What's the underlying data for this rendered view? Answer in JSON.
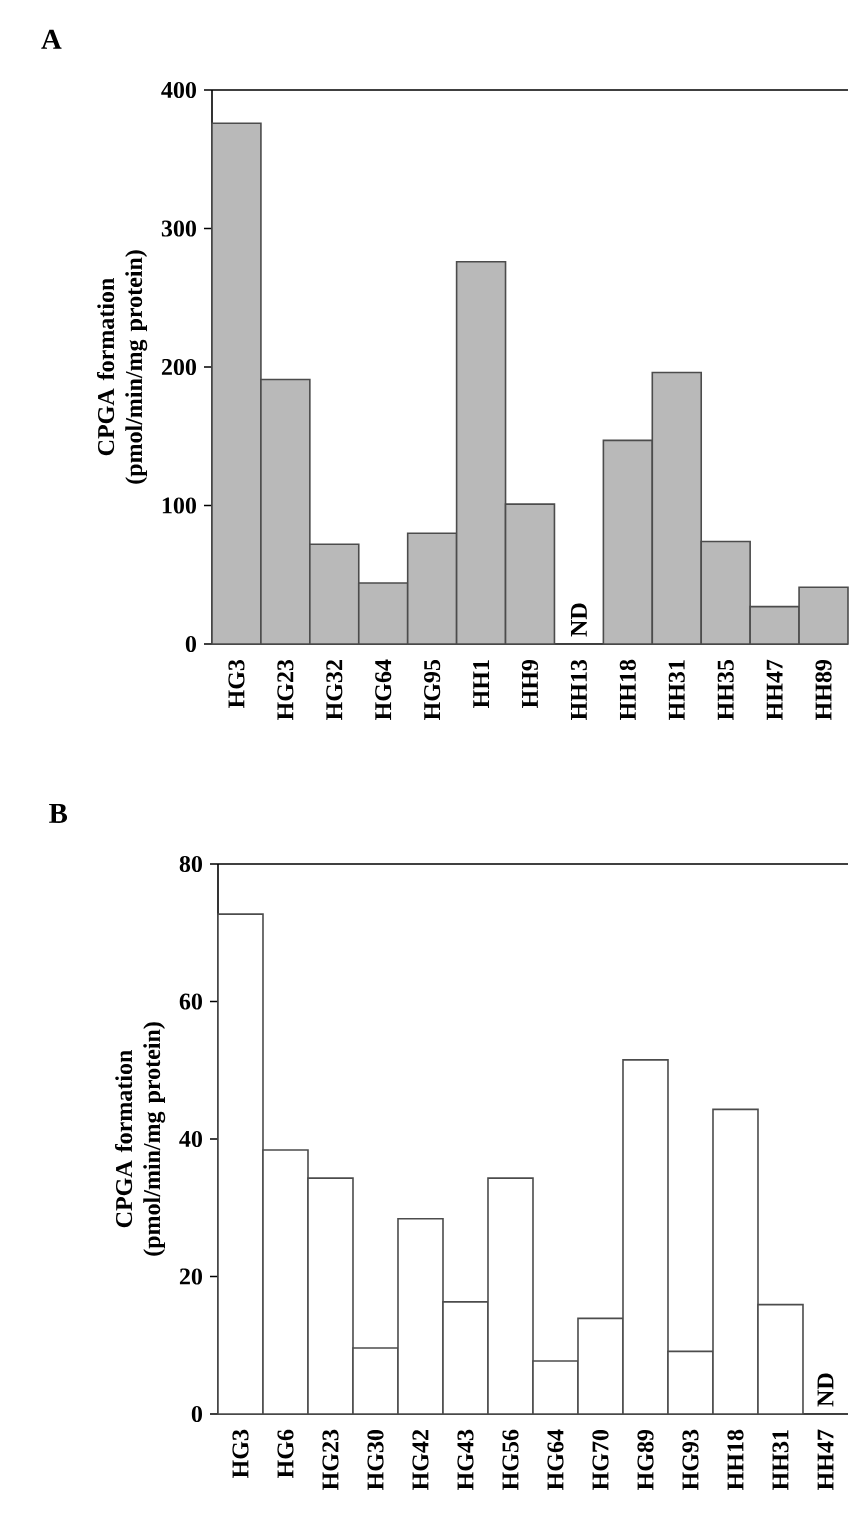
{
  "chart_data": [
    {
      "type": "bar",
      "title": "A",
      "ylabel": "CPGA formation (pmol/min/mg protein)",
      "categories": [
        "HG3",
        "HG23",
        "HG32",
        "HG64",
        "HG95",
        "HH1",
        "HH9",
        "HH13",
        "HH18",
        "HH31",
        "HH35",
        "HH47",
        "HH89"
      ],
      "values": [
        376,
        191,
        72,
        44,
        80,
        276,
        101,
        null,
        147,
        196,
        74,
        27,
        41
      ],
      "color": "#b9b9b9",
      "ylim": [
        0,
        400
      ],
      "yticks": [
        0,
        100,
        200,
        300,
        400
      ],
      "grid": false,
      "annotations": [
        "ND"
      ]
    },
    {
      "type": "bar",
      "title": "B",
      "ylabel": "CPGA formation (pmol/min/mg protein)",
      "categories": [
        "HG3",
        "HG6",
        "HG23",
        "HG30",
        "HG42",
        "HG43",
        "HG56",
        "HG64",
        "HG70",
        "HG89",
        "HG93",
        "HH18",
        "HH31",
        "HH47"
      ],
      "values": [
        72.7,
        38.4,
        34.3,
        9.6,
        28.4,
        16.3,
        34.3,
        7.7,
        13.9,
        51.5,
        9.1,
        44.3,
        15.9,
        null
      ],
      "color": "#ffffff",
      "ylim": [
        0,
        80
      ],
      "yticks": [
        0,
        20,
        40,
        60,
        80
      ],
      "grid": false,
      "annotations": [
        "ND"
      ]
    }
  ]
}
